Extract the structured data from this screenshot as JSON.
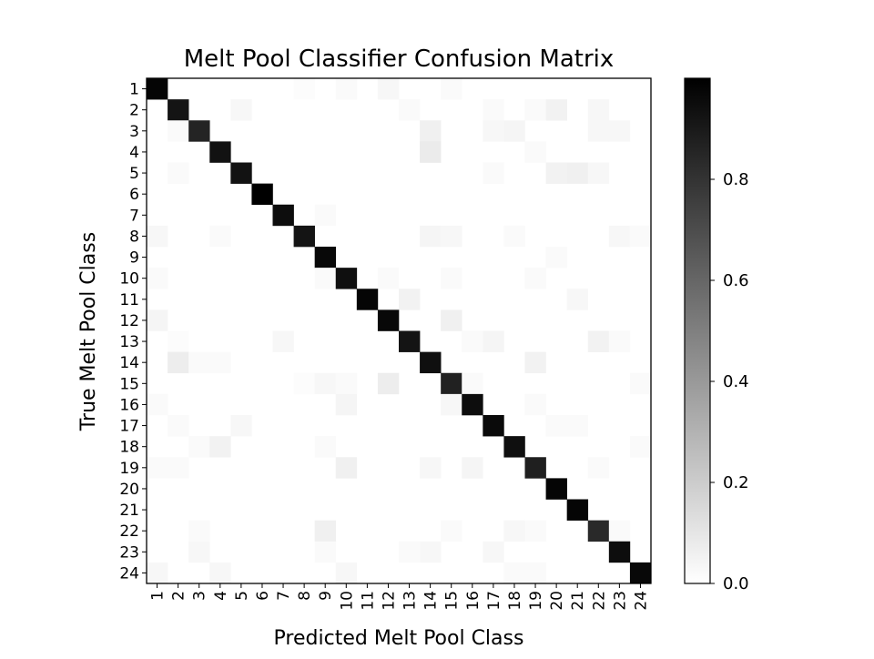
{
  "chart_data": {
    "type": "heatmap",
    "title": "Melt Pool Classifier Confusion Matrix",
    "xlabel": "Predicted Melt Pool Class",
    "ylabel": "True Melt Pool Class",
    "categories": [
      "1",
      "2",
      "3",
      "4",
      "5",
      "6",
      "7",
      "8",
      "9",
      "10",
      "11",
      "12",
      "13",
      "14",
      "15",
      "16",
      "17",
      "18",
      "19",
      "20",
      "21",
      "22",
      "23",
      "24"
    ],
    "diagonal": [
      0.98,
      0.92,
      0.86,
      0.93,
      0.93,
      1.0,
      0.95,
      0.92,
      0.97,
      0.94,
      0.98,
      0.97,
      0.92,
      0.94,
      0.87,
      0.95,
      0.96,
      0.94,
      0.88,
      0.98,
      0.98,
      0.84,
      0.95,
      0.97
    ],
    "off_diagonal": [
      [
        1,
        8,
        0.01
      ],
      [
        1,
        10,
        0.02
      ],
      [
        1,
        12,
        0.03
      ],
      [
        1,
        15,
        0.02
      ],
      [
        2,
        5,
        0.03
      ],
      [
        2,
        13,
        0.02
      ],
      [
        2,
        17,
        0.02
      ],
      [
        2,
        19,
        0.02
      ],
      [
        2,
        20,
        0.05
      ],
      [
        2,
        22,
        0.03
      ],
      [
        3,
        2,
        0.02
      ],
      [
        3,
        14,
        0.06
      ],
      [
        3,
        17,
        0.03
      ],
      [
        3,
        18,
        0.04
      ],
      [
        3,
        22,
        0.03
      ],
      [
        3,
        23,
        0.03
      ],
      [
        4,
        14,
        0.08
      ],
      [
        4,
        19,
        0.02
      ],
      [
        5,
        2,
        0.02
      ],
      [
        5,
        17,
        0.02
      ],
      [
        5,
        20,
        0.05
      ],
      [
        5,
        21,
        0.06
      ],
      [
        5,
        22,
        0.03
      ],
      [
        7,
        9,
        0.02
      ],
      [
        8,
        1,
        0.03
      ],
      [
        8,
        4,
        0.02
      ],
      [
        8,
        14,
        0.04
      ],
      [
        8,
        15,
        0.03
      ],
      [
        8,
        18,
        0.02
      ],
      [
        8,
        23,
        0.03
      ],
      [
        8,
        24,
        0.02
      ],
      [
        9,
        20,
        0.02
      ],
      [
        10,
        1,
        0.02
      ],
      [
        10,
        9,
        0.02
      ],
      [
        10,
        12,
        0.02
      ],
      [
        10,
        15,
        0.02
      ],
      [
        10,
        19,
        0.02
      ],
      [
        11,
        13,
        0.05
      ],
      [
        11,
        21,
        0.03
      ],
      [
        12,
        1,
        0.04
      ],
      [
        12,
        15,
        0.06
      ],
      [
        13,
        2,
        0.01
      ],
      [
        13,
        7,
        0.03
      ],
      [
        13,
        16,
        0.02
      ],
      [
        13,
        17,
        0.04
      ],
      [
        13,
        22,
        0.05
      ],
      [
        13,
        23,
        0.02
      ],
      [
        14,
        2,
        0.07
      ],
      [
        14,
        3,
        0.02
      ],
      [
        14,
        4,
        0.02
      ],
      [
        14,
        19,
        0.05
      ],
      [
        15,
        8,
        0.01
      ],
      [
        15,
        9,
        0.03
      ],
      [
        15,
        10,
        0.02
      ],
      [
        15,
        12,
        0.07
      ],
      [
        15,
        16,
        0.02
      ],
      [
        15,
        24,
        0.02
      ],
      [
        16,
        1,
        0.02
      ],
      [
        16,
        10,
        0.04
      ],
      [
        16,
        15,
        0.03
      ],
      [
        16,
        19,
        0.02
      ],
      [
        17,
        2,
        0.02
      ],
      [
        17,
        5,
        0.03
      ],
      [
        17,
        20,
        0.02
      ],
      [
        17,
        21,
        0.02
      ],
      [
        18,
        3,
        0.02
      ],
      [
        18,
        4,
        0.05
      ],
      [
        18,
        9,
        0.02
      ],
      [
        18,
        24,
        0.02
      ],
      [
        19,
        1,
        0.02
      ],
      [
        19,
        2,
        0.02
      ],
      [
        19,
        10,
        0.06
      ],
      [
        19,
        14,
        0.03
      ],
      [
        19,
        16,
        0.04
      ],
      [
        19,
        22,
        0.02
      ],
      [
        22,
        3,
        0.02
      ],
      [
        22,
        9,
        0.06
      ],
      [
        22,
        15,
        0.02
      ],
      [
        22,
        18,
        0.03
      ],
      [
        22,
        19,
        0.02
      ],
      [
        22,
        23,
        0.02
      ],
      [
        23,
        3,
        0.03
      ],
      [
        23,
        9,
        0.02
      ],
      [
        23,
        13,
        0.02
      ],
      [
        23,
        14,
        0.03
      ],
      [
        23,
        17,
        0.03
      ],
      [
        24,
        1,
        0.03
      ],
      [
        24,
        4,
        0.03
      ],
      [
        24,
        10,
        0.03
      ],
      [
        24,
        18,
        0.02
      ],
      [
        24,
        19,
        0.02
      ]
    ],
    "colormap": "gray_r",
    "colorbar": {
      "min": 0.0,
      "max": 1.0,
      "ticks": [
        "0.0",
        "0.2",
        "0.4",
        "0.6",
        "0.8"
      ]
    },
    "grid": false
  }
}
